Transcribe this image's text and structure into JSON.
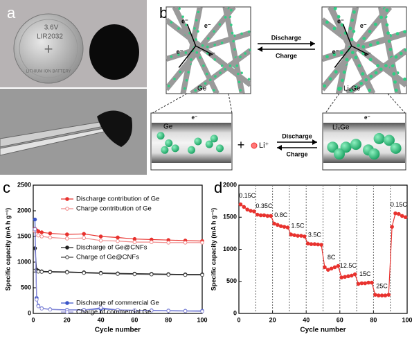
{
  "panel_a": {
    "label": "a",
    "battery_text": [
      "3.6V",
      "LIR2032",
      "LITHIUM ION BATTERY"
    ]
  },
  "panel_b": {
    "label": "b",
    "discharge": "Discharge",
    "charge": "Charge",
    "electron": "e⁻",
    "ge": "Ge",
    "lixge": "LiₓGe",
    "plus": "+",
    "li_ion": "Li⁺"
  },
  "chart_data": [
    {
      "type": "line",
      "panel": "c",
      "x_label": "Cycle number",
      "y_label": "Specific capacity (mA h g⁻¹)",
      "xlim": [
        0,
        100
      ],
      "xticks": [
        0,
        20,
        40,
        60,
        80,
        100
      ],
      "ylim": [
        0,
        2500
      ],
      "yticks": [
        0,
        500,
        1000,
        1500,
        2000,
        2500
      ],
      "x": [
        1,
        2,
        3,
        5,
        10,
        20,
        30,
        40,
        50,
        60,
        70,
        80,
        90,
        100
      ],
      "series": [
        {
          "name": "Discharge contribution of Ge",
          "color": "#e8322e",
          "marker": "filled",
          "values": [
            1650,
            1620,
            1600,
            1580,
            1560,
            1540,
            1550,
            1500,
            1480,
            1450,
            1440,
            1430,
            1420,
            1410
          ]
        },
        {
          "name": "Charge contribution of Ge",
          "color": "#f08a8a",
          "marker": "open",
          "values": [
            1600,
            1540,
            1520,
            1500,
            1480,
            1460,
            1470,
            1420,
            1410,
            1390,
            1390,
            1380,
            1380,
            1380
          ]
        },
        {
          "name": "Discharge of Ge@CNFs",
          "color": "#222222",
          "marker": "filled",
          "values": [
            1270,
            850,
            830,
            820,
            815,
            810,
            800,
            790,
            780,
            775,
            770,
            765,
            760,
            760
          ]
        },
        {
          "name": "Charge of Ge@CNFs",
          "color": "#444444",
          "marker": "open",
          "values": [
            830,
            820,
            815,
            810,
            805,
            800,
            790,
            780,
            770,
            765,
            760,
            755,
            750,
            750
          ]
        },
        {
          "name": "Discharge of commercial Ge",
          "color": "#3a55c8",
          "marker": "filled",
          "values": [
            1830,
            300,
            150,
            100,
            80,
            70,
            70,
            90,
            70,
            60,
            60,
            55,
            50,
            50
          ]
        },
        {
          "name": "Charge of commercial Ge",
          "color": "#8a8ad8",
          "marker": "open",
          "values": [
            1640,
            270,
            140,
            95,
            75,
            65,
            65,
            110,
            70,
            60,
            55,
            50,
            45,
            40
          ]
        }
      ],
      "legend": true
    },
    {
      "type": "line",
      "panel": "d",
      "x_label": "Cycle number",
      "y_label": "Specific capacity (mA h g⁻¹)",
      "xlim": [
        0,
        100
      ],
      "xticks": [
        0,
        20,
        40,
        60,
        80,
        100
      ],
      "ylim": [
        0,
        2000
      ],
      "yticks": [
        0,
        500,
        1000,
        1500,
        2000
      ],
      "vlines": [
        10,
        20,
        30,
        40,
        50,
        60,
        70,
        80,
        90
      ],
      "x": [
        1,
        3,
        5,
        7,
        9,
        11,
        13,
        15,
        17,
        19,
        21,
        23,
        25,
        27,
        29,
        31,
        33,
        35,
        37,
        39,
        41,
        43,
        45,
        47,
        49,
        51,
        53,
        55,
        57,
        59,
        61,
        63,
        65,
        67,
        69,
        71,
        73,
        75,
        77,
        79,
        81,
        83,
        85,
        87,
        89,
        91,
        93,
        95,
        97,
        99
      ],
      "series": [
        {
          "color": "#e8322e",
          "marker": "filled",
          "values": [
            1700,
            1660,
            1620,
            1600,
            1590,
            1540,
            1530,
            1530,
            1520,
            1520,
            1400,
            1380,
            1360,
            1350,
            1340,
            1230,
            1220,
            1210,
            1210,
            1200,
            1090,
            1080,
            1080,
            1075,
            1070,
            720,
            680,
            700,
            720,
            740,
            560,
            570,
            580,
            590,
            610,
            460,
            470,
            470,
            480,
            480,
            290,
            280,
            280,
            280,
            290,
            1350,
            1560,
            1550,
            1520,
            1500
          ]
        }
      ],
      "rate_labels": [
        "0.15C",
        "0.35C",
        "0.8C",
        "1.5C",
        "3.5C",
        "8C",
        "12.5C",
        "15C",
        "25C",
        "0.15C"
      ]
    }
  ]
}
